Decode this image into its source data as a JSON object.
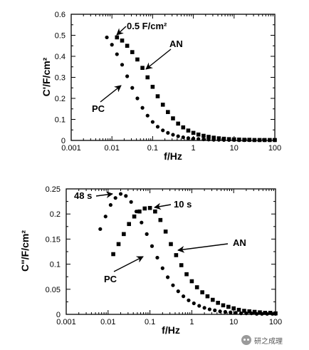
{
  "chart_data": [
    {
      "type": "scatter",
      "title": "",
      "xlabel": "f/Hz",
      "ylabel": "C'/F/cm²",
      "xscale": "log",
      "xlim": [
        0.001,
        100
      ],
      "ylim": [
        0,
        0.6
      ],
      "xticks": [
        "0.001",
        "0.01",
        "0.1",
        "1",
        "10",
        "100"
      ],
      "yticks": [
        "0",
        "0.1",
        "0.2",
        "0.3",
        "0.4",
        "0.5",
        "0.6"
      ],
      "annotations": [
        "0.5 F/cm²",
        "AN",
        "PC"
      ],
      "series": [
        {
          "name": "AN",
          "marker": "square",
          "x": [
            0.0133,
            0.0178,
            0.0237,
            0.0316,
            0.0422,
            0.0562,
            0.075,
            0.1,
            0.133,
            0.178,
            0.237,
            0.316,
            0.422,
            0.562,
            0.75,
            1,
            1.33,
            1.78,
            2.37,
            3.16,
            4.22,
            5.62,
            7.5,
            10,
            13.3,
            17.8,
            23.7,
            31.6,
            42.2,
            56.2,
            75,
            100
          ],
          "y": [
            0.49,
            0.475,
            0.45,
            0.42,
            0.385,
            0.345,
            0.3,
            0.255,
            0.21,
            0.17,
            0.135,
            0.105,
            0.08,
            0.062,
            0.047,
            0.036,
            0.028,
            0.022,
            0.017,
            0.013,
            0.01,
            0.008,
            0.006,
            0.005,
            0.004,
            0.003,
            0.003,
            0.002,
            0.002,
            0.002,
            0.002,
            0.002
          ]
        },
        {
          "name": "PC",
          "marker": "circle",
          "x": [
            0.0075,
            0.01,
            0.0133,
            0.0178,
            0.0237,
            0.0316,
            0.0422,
            0.0562,
            0.075,
            0.1,
            0.133,
            0.178,
            0.237,
            0.316,
            0.422,
            0.562,
            0.75,
            1,
            1.33,
            1.78,
            2.37,
            3.16,
            4.22,
            5.62,
            7.5,
            10,
            13.3,
            17.8,
            23.7,
            31.6,
            42.2,
            56.2,
            75,
            100
          ],
          "y": [
            0.49,
            0.455,
            0.41,
            0.36,
            0.305,
            0.25,
            0.2,
            0.155,
            0.118,
            0.088,
            0.065,
            0.048,
            0.036,
            0.027,
            0.02,
            0.015,
            0.011,
            0.009,
            0.007,
            0.005,
            0.004,
            0.003,
            0.003,
            0.002,
            0.002,
            0.002,
            0.001,
            0.001,
            0.001,
            0.001,
            0.001,
            0.001,
            0.001,
            0.001
          ]
        }
      ]
    },
    {
      "type": "scatter",
      "title": "",
      "xlabel": "f/Hz",
      "ylabel": "C\"/F/cm²",
      "xscale": "log",
      "xlim": [
        0.001,
        100
      ],
      "ylim": [
        0,
        0.25
      ],
      "xticks": [
        "0.001",
        "0.01",
        "0.1",
        "1",
        "10",
        "100"
      ],
      "yticks": [
        "0",
        "0.05",
        "0.1",
        "0.15",
        "0.2",
        "0.25"
      ],
      "annotations": [
        "48 s",
        "10 s",
        "AN",
        "PC"
      ],
      "series": [
        {
          "name": "AN",
          "marker": "square",
          "x": [
            0.0133,
            0.0178,
            0.0237,
            0.0316,
            0.0422,
            0.0562,
            0.075,
            0.1,
            0.133,
            0.178,
            0.237,
            0.316,
            0.422,
            0.562,
            0.75,
            1,
            1.33,
            1.78,
            2.37,
            3.16,
            4.22,
            5.62,
            7.5,
            10,
            13.3,
            17.8,
            23.7,
            31.6,
            42.2,
            56.2,
            75,
            100
          ],
          "y": [
            0.12,
            0.14,
            0.16,
            0.18,
            0.195,
            0.205,
            0.211,
            0.212,
            0.205,
            0.188,
            0.165,
            0.14,
            0.118,
            0.098,
            0.08,
            0.066,
            0.054,
            0.044,
            0.036,
            0.029,
            0.023,
            0.018,
            0.015,
            0.012,
            0.009,
            0.007,
            0.006,
            0.005,
            0.004,
            0.003,
            0.003,
            0.002
          ]
        },
        {
          "name": "PC",
          "marker": "circle",
          "x": [
            0.0065,
            0.0087,
            0.0115,
            0.015,
            0.02,
            0.0266,
            0.0355,
            0.0473,
            0.063,
            0.084,
            0.112,
            0.15,
            0.2,
            0.266,
            0.355,
            0.473,
            0.63,
            0.84,
            1.12,
            1.5,
            2,
            2.66,
            3.55,
            4.73,
            6.3,
            8.4,
            11.2,
            15,
            20,
            26.6,
            35.5,
            47.3,
            63,
            84,
            100
          ],
          "y": [
            0.17,
            0.195,
            0.218,
            0.232,
            0.24,
            0.236,
            0.224,
            0.205,
            0.183,
            0.16,
            0.136,
            0.113,
            0.092,
            0.074,
            0.058,
            0.046,
            0.036,
            0.028,
            0.022,
            0.017,
            0.013,
            0.01,
            0.008,
            0.006,
            0.005,
            0.004,
            0.003,
            0.002,
            0.002,
            0.002,
            0.001,
            0.001,
            0.001,
            0.001,
            0.001
          ]
        }
      ]
    }
  ],
  "watermark": {
    "icon": "wechat-icon",
    "text": "研之成理"
  }
}
